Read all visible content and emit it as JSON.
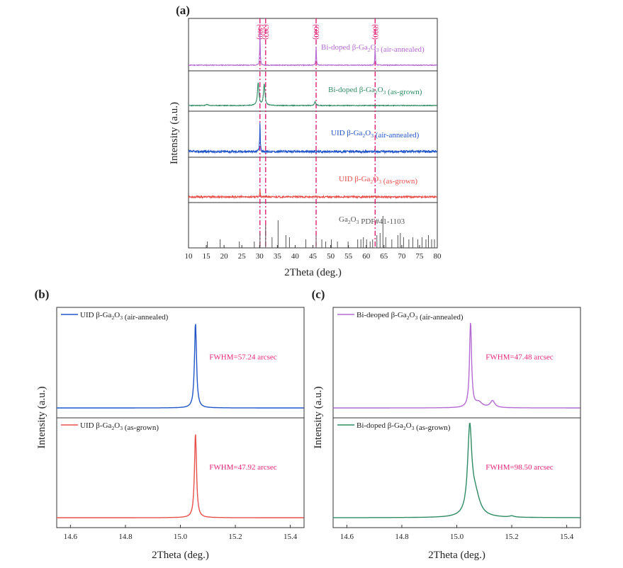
{
  "chart_data": [
    {
      "type": "line",
      "panel_label": "(a)",
      "xlabel": "2Theta (deg.)",
      "ylabel": "Intensity (a.u.)",
      "xlim": [
        10,
        80
      ],
      "xticks": [
        10,
        15,
        20,
        25,
        30,
        35,
        40,
        45,
        50,
        55,
        60,
        65,
        70,
        75,
        80
      ],
      "reference_lines": [
        {
          "x": 30.1,
          "label": "(400)"
        },
        {
          "x": 31.7,
          "label": "(202)"
        },
        {
          "x": 45.9,
          "label": "(600)"
        },
        {
          "x": 62.5,
          "label": "(800)"
        }
      ],
      "series": [
        {
          "name": "Bi-doped β-Ga2O3 (air-annealed)",
          "color": "#b36ad1",
          "peaks": [
            {
              "x": 30.1,
              "y": 0.8
            },
            {
              "x": 45.9,
              "y": 0.45
            },
            {
              "x": 62.5,
              "y": 0.4
            }
          ]
        },
        {
          "name": "Bi-doped β-Ga2O3 (as-grown)",
          "color": "#2e8b63",
          "peaks": [
            {
              "x": 29.6,
              "y": 0.75
            },
            {
              "x": 31.3,
              "y": 0.7
            },
            {
              "x": 45.6,
              "y": 0.12
            },
            {
              "x": 15.2,
              "y": 0.04
            }
          ]
        },
        {
          "name": "UID β-Ga2O3 (air-annealed)",
          "color": "#2256c8",
          "peaks": [
            {
              "x": 30.1,
              "y": 0.85
            }
          ]
        },
        {
          "name": "UID β-Ga2O3 (as-grown)",
          "color": "#e8504a",
          "peaks": [
            {
              "x": 30.1,
              "y": 0.22
            }
          ]
        },
        {
          "name": "Ga2O3 PDF#41-1103",
          "color": "#555555",
          "sticks": [
            [
              15.3,
              0.15
            ],
            [
              18.9,
              0.2
            ],
            [
              24.3,
              0.15
            ],
            [
              28.5,
              0.15
            ],
            [
              30.1,
              0.35
            ],
            [
              31.7,
              0.55
            ],
            [
              33.5,
              0.25
            ],
            [
              35.2,
              0.65
            ],
            [
              37.4,
              0.3
            ],
            [
              38.4,
              0.25
            ],
            [
              43.0,
              0.2
            ],
            [
              45.9,
              0.3
            ],
            [
              47.5,
              0.2
            ],
            [
              48.6,
              0.15
            ],
            [
              50.2,
              0.2
            ],
            [
              51.9,
              0.15
            ],
            [
              54.9,
              0.15
            ],
            [
              57.6,
              0.2
            ],
            [
              58.5,
              0.2
            ],
            [
              59.2,
              0.25
            ],
            [
              60.1,
              0.2
            ],
            [
              61.1,
              0.15
            ],
            [
              61.8,
              0.2
            ],
            [
              63.0,
              0.3
            ],
            [
              63.9,
              0.35
            ],
            [
              64.7,
              0.75
            ],
            [
              65.5,
              0.25
            ],
            [
              67.2,
              0.2
            ],
            [
              68.9,
              0.3
            ],
            [
              69.6,
              0.35
            ],
            [
              70.5,
              0.25
            ],
            [
              72.0,
              0.2
            ],
            [
              73.1,
              0.25
            ],
            [
              74.5,
              0.2
            ],
            [
              75.7,
              0.25
            ],
            [
              76.8,
              0.2
            ],
            [
              77.5,
              0.3
            ],
            [
              78.4,
              0.2
            ],
            [
              79.2,
              0.2
            ]
          ]
        }
      ]
    },
    {
      "type": "line",
      "panel_label": "(b)",
      "xlabel": "2Theta (deg.)",
      "ylabel": "Intensity (a.u.)",
      "xlim": [
        14.55,
        15.45
      ],
      "xticks": [
        14.6,
        14.8,
        15.0,
        15.2,
        15.4
      ],
      "series": [
        {
          "name": "UID β-Ga2O3 (air-annealed)",
          "color": "#2256c8",
          "peak_center": 15.055,
          "fwhm_label": "FWHM=57.24 arcsec"
        },
        {
          "name": "UID β-Ga2O3 (as-grown)",
          "color": "#e8504a",
          "peak_center": 15.055,
          "fwhm_label": "FWHM=47.92 arcsec"
        }
      ]
    },
    {
      "type": "line",
      "panel_label": "(c)",
      "xlabel": "2Theta (deg.)",
      "ylabel": "Intensity (a.u.)",
      "xlim": [
        14.55,
        15.45
      ],
      "xticks": [
        14.6,
        14.8,
        15.0,
        15.2,
        15.4
      ],
      "series": [
        {
          "name": "Bi-deoped β-Ga2O3 (air-annealed)",
          "color": "#b36ad1",
          "peak_center": 15.05,
          "secondary_peak": 15.13,
          "fwhm_label": "FWHM=47.48 arcsec"
        },
        {
          "name": "Bi-doped β-Ga2O3 (as-grown)",
          "color": "#2e8b63",
          "peak_center": 15.047,
          "secondary_peak": 15.2,
          "fwhm_label": "FWHM=98.50 arcsec"
        }
      ]
    }
  ],
  "fwhm_color": "#e6257a",
  "refline_color": "#e0106e"
}
